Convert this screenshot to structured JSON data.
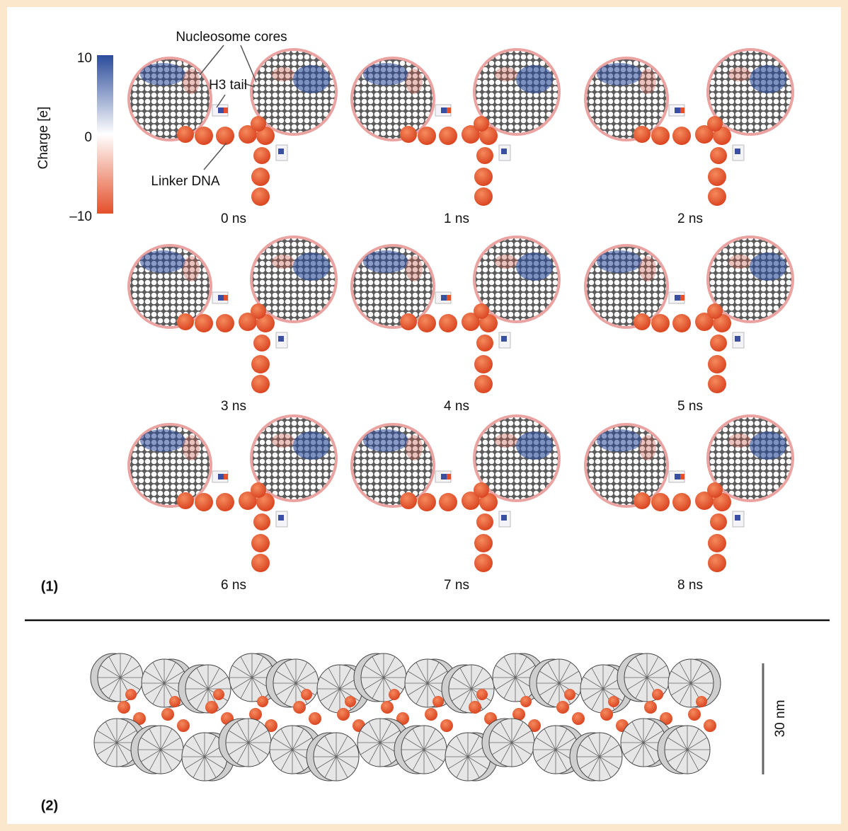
{
  "colorbar": {
    "title": "Charge [e]",
    "ticks": [
      "10",
      "0",
      "–10"
    ]
  },
  "annotations": {
    "cores": "Nucleosome cores",
    "tail": "H3 tail",
    "linker": "Linker DNA"
  },
  "panel1": {
    "label": "(1)",
    "snapshots": [
      "0 ns",
      "1 ns",
      "2 ns",
      "3 ns",
      "4 ns",
      "5 ns",
      "6 ns",
      "7 ns",
      "8 ns"
    ]
  },
  "panel2": {
    "label": "(2)",
    "scale_bar": "30 nm"
  }
}
